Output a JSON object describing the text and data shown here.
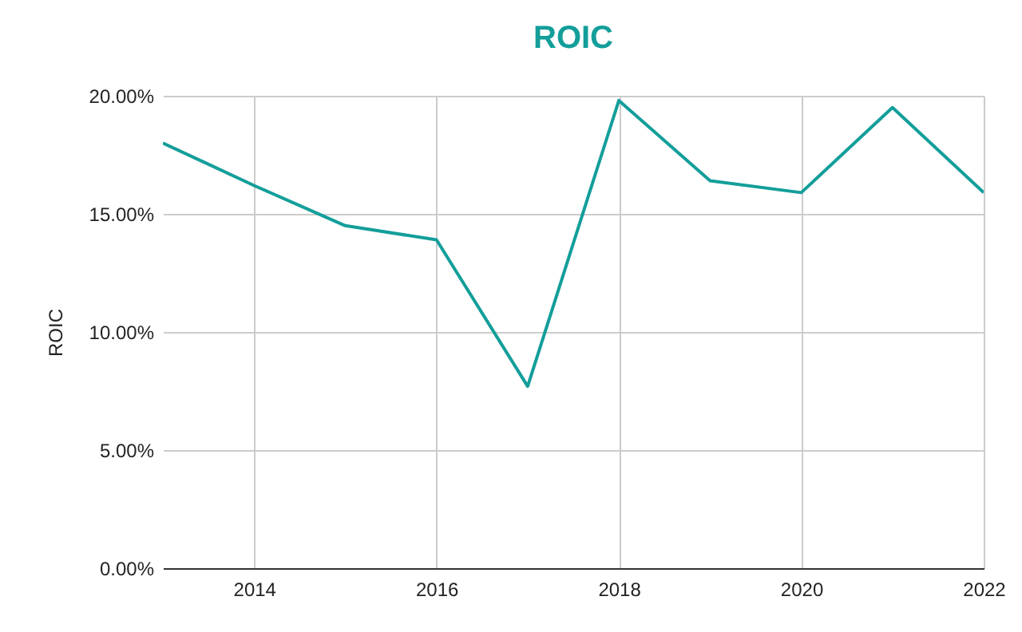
{
  "chart_data": {
    "type": "line",
    "title": "ROIC",
    "ylabel": "ROIC",
    "x": [
      2013,
      2014,
      2015,
      2016,
      2017,
      2018,
      2019,
      2020,
      2021,
      2022
    ],
    "series": [
      {
        "color": "#139e9a",
        "values": [
          18.0,
          16.2,
          14.5,
          13.9,
          7.7,
          19.8,
          16.4,
          15.9,
          19.5,
          15.9
        ]
      }
    ],
    "xlim": [
      2013,
      2022
    ],
    "xticks": [
      2014,
      2016,
      2018,
      2020,
      2022
    ],
    "ylim": [
      0,
      20
    ],
    "yticks": [
      {
        "value": 0,
        "label": "0.00%"
      },
      {
        "value": 5,
        "label": "5.00%"
      },
      {
        "value": 10,
        "label": "10.00%"
      },
      {
        "value": 15,
        "label": "15.00%"
      },
      {
        "value": 20,
        "label": "20.00%"
      }
    ],
    "grid": true,
    "marker": "none",
    "line_style": "solid"
  }
}
